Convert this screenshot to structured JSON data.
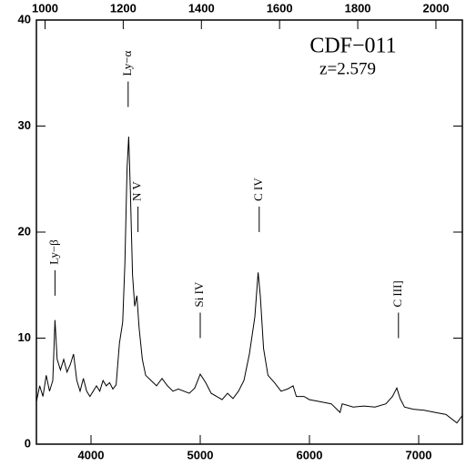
{
  "chart_data": {
    "type": "line",
    "label_name": "CDF−011",
    "label_redshift": "z=2.579",
    "x": [
      3500,
      3530,
      3560,
      3590,
      3620,
      3650,
      3670,
      3690,
      3720,
      3750,
      3780,
      3810,
      3840,
      3870,
      3900,
      3930,
      3960,
      3990,
      4020,
      4050,
      4080,
      4110,
      4140,
      4170,
      4200,
      4230,
      4260,
      4290,
      4310,
      4330,
      4345,
      4360,
      4380,
      4400,
      4420,
      4440,
      4470,
      4500,
      4550,
      4600,
      4650,
      4700,
      4750,
      4800,
      4850,
      4900,
      4950,
      5000,
      5050,
      5100,
      5150,
      5200,
      5250,
      5300,
      5350,
      5400,
      5450,
      5500,
      5530,
      5550,
      5580,
      5620,
      5680,
      5740,
      5800,
      5850,
      5880,
      5950,
      6000,
      6100,
      6200,
      6280,
      6300,
      6400,
      6500,
      6600,
      6700,
      6760,
      6800,
      6830,
      6870,
      6950,
      7050,
      7150,
      7250,
      7350,
      7400
    ],
    "series": [
      {
        "color": "#000000",
        "values": [
          4,
          5.5,
          4.5,
          6.5,
          5,
          6,
          11.7,
          8,
          7,
          8,
          6.8,
          7.5,
          8.5,
          6,
          5,
          6.2,
          5,
          4.5,
          5,
          5.5,
          5,
          6,
          5.5,
          5.8,
          5.2,
          5.6,
          9.5,
          11.5,
          17,
          26,
          29,
          24,
          16,
          13,
          14,
          11,
          8,
          6.5,
          6,
          5.5,
          6.2,
          5.5,
          5,
          5.2,
          5,
          4.8,
          5.3,
          6.6,
          5.8,
          4.8,
          4.5,
          4.2,
          4.8,
          4.3,
          5,
          6,
          8.5,
          12,
          16.2,
          14,
          9,
          6.5,
          5.8,
          5,
          5.2,
          5.5,
          4.5,
          4.5,
          4.2,
          4,
          3.8,
          3,
          3.8,
          3.5,
          3.6,
          3.5,
          3.8,
          4.5,
          5.3,
          4.3,
          3.5,
          3.3,
          3.2,
          3,
          2.8,
          2,
          2.7
        ]
      }
    ],
    "xlim": [
      3500,
      7400
    ],
    "xticks": [
      4000,
      5000,
      6000,
      7000
    ],
    "x2lim": [
      977.9,
      2067.6
    ],
    "x2ticks": [
      1000,
      1200,
      1400,
      1600,
      1800,
      2000
    ],
    "ylim": [
      0,
      40
    ],
    "yticks": [
      0,
      10,
      20,
      30,
      40
    ],
    "annotations": [
      {
        "text": "Ly−β",
        "x": 3670,
        "y": 14
      },
      {
        "text": "Ly−α",
        "x": 4340,
        "y": 31.8
      },
      {
        "text": "N V",
        "x": 4430,
        "y": 20
      },
      {
        "text": "Si IV",
        "x": 5000,
        "y": 10
      },
      {
        "text": "C IV",
        "x": 5540,
        "y": 20
      },
      {
        "text": "C III]",
        "x": 6815,
        "y": 10
      }
    ]
  }
}
